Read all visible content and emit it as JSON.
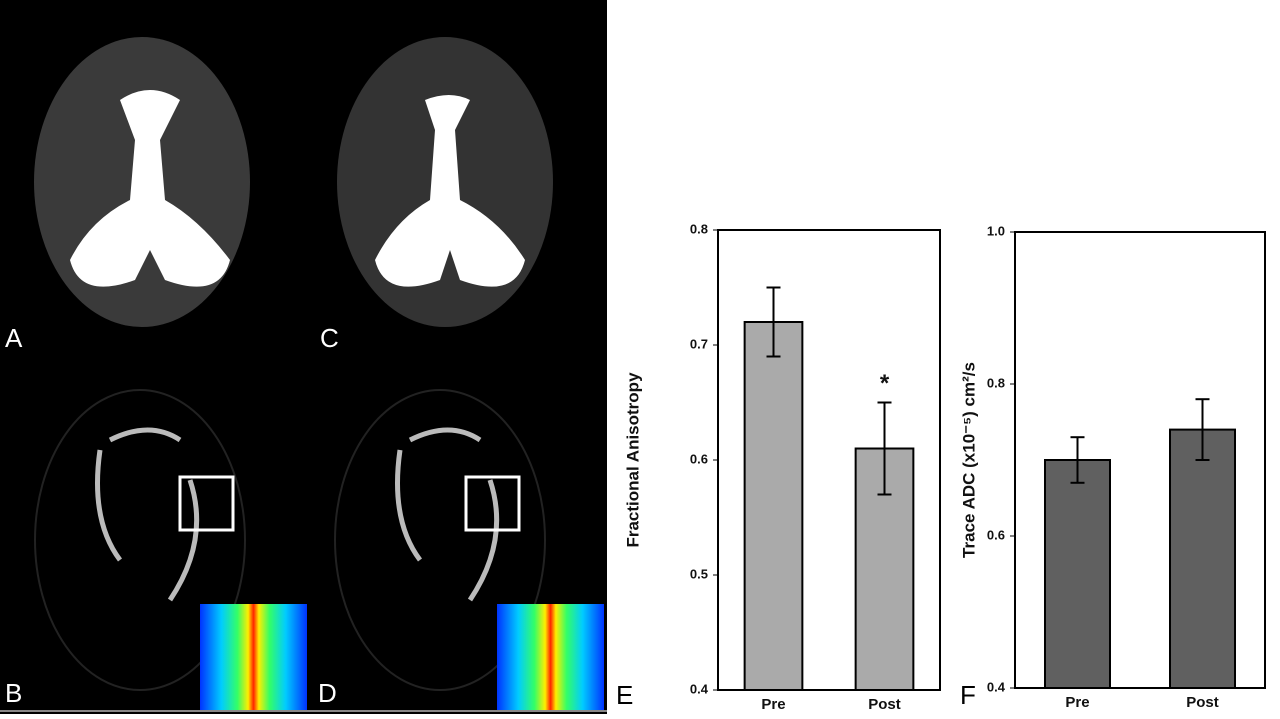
{
  "image_labels": [
    "A",
    "B",
    "C",
    "D"
  ],
  "chart_data": [
    {
      "type": "bar",
      "panel": "E",
      "ylabel": "Fractional Anisotropy",
      "categories": [
        "Pre",
        "Post"
      ],
      "values": [
        0.72,
        0.61
      ],
      "errors": [
        0.03,
        0.04
      ],
      "color": "#aaaaaa",
      "annotation": "*",
      "ylim": [
        0.4,
        0.8
      ],
      "yticks": [
        0.4,
        0.5,
        0.6,
        0.7,
        0.8
      ]
    },
    {
      "type": "bar",
      "panel": "F",
      "ylabel": "Trace ADC (x10⁻⁵) cm²/s",
      "categories": [
        "Pre",
        "Post"
      ],
      "values": [
        0.7,
        0.74
      ],
      "errors": [
        0.03,
        0.04
      ],
      "color": "#606060",
      "ylim": [
        0.4,
        1.0
      ],
      "yticks": [
        0.4,
        0.6,
        0.8,
        {
          "value": 1.0,
          "label": "1.0"
        }
      ]
    }
  ]
}
